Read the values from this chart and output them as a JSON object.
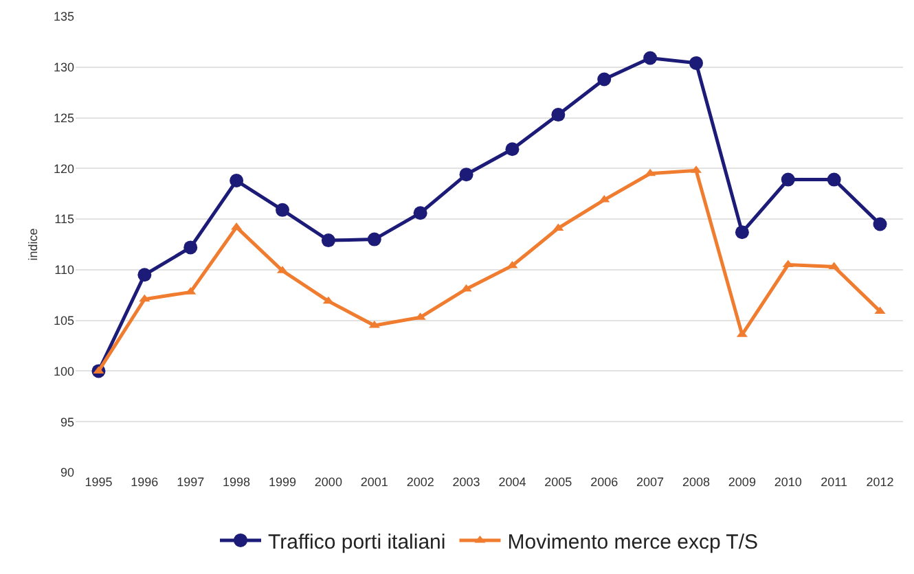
{
  "chart_data": {
    "type": "line",
    "ylabel": "indice",
    "categories": [
      "1995",
      "1996",
      "1997",
      "1998",
      "1999",
      "2000",
      "2001",
      "2002",
      "2003",
      "2004",
      "2005",
      "2006",
      "2007",
      "2008",
      "2009",
      "2010",
      "2011",
      "2012"
    ],
    "series": [
      {
        "name": "Traffico porti italiani",
        "color": "#1c1c78",
        "marker": "circle",
        "values": [
          100,
          109.5,
          112.2,
          118.8,
          115.9,
          112.9,
          113.0,
          115.6,
          119.4,
          121.9,
          125.3,
          128.8,
          130.9,
          130.4,
          113.7,
          118.9,
          118.9,
          114.5
        ]
      },
      {
        "name": "Movimento merce excp T/S",
        "color": "#f07c30",
        "marker": "triangle",
        "values": [
          100,
          107.1,
          107.8,
          114.2,
          109.9,
          106.9,
          104.5,
          105.3,
          108.1,
          110.4,
          114.1,
          116.9,
          119.5,
          119.8,
          103.6,
          110.5,
          110.3,
          105.9
        ]
      }
    ],
    "ylim": [
      90,
      135
    ],
    "yticks": [
      90,
      95,
      100,
      105,
      110,
      115,
      120,
      125,
      130,
      135
    ],
    "grid": "y",
    "legend": "bottom",
    "line_style": "solid"
  }
}
